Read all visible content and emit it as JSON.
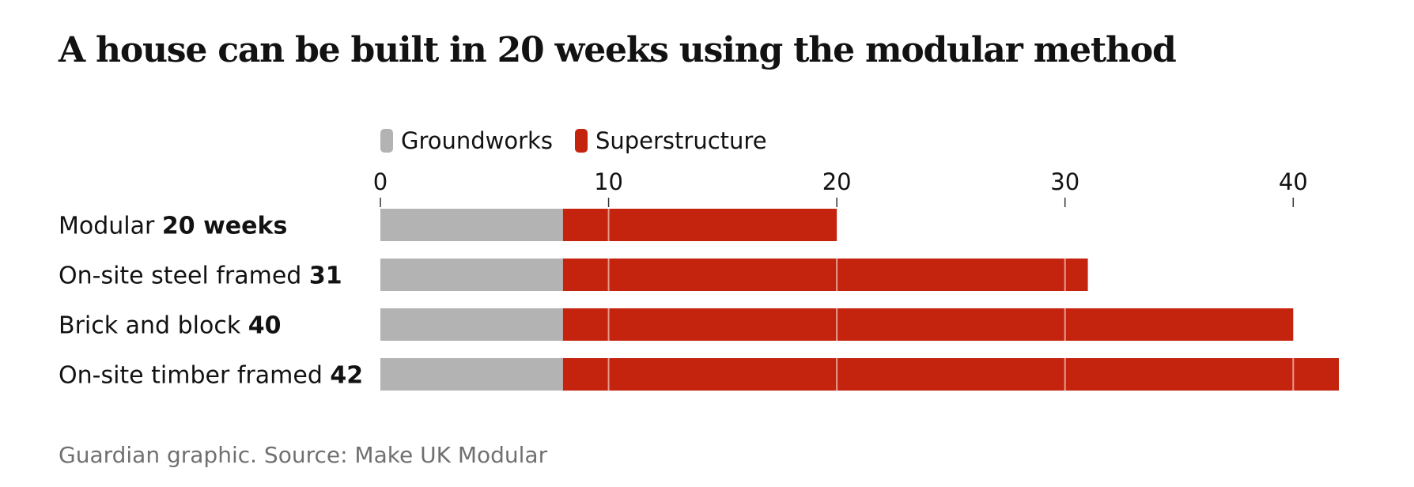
{
  "chart_data": {
    "type": "bar",
    "orientation": "horizontal",
    "stacked": true,
    "title": "A house can be built in 20 weeks using the modular method",
    "categories": [
      {
        "label": "Modular",
        "value_label": "20 weeks"
      },
      {
        "label": "On-site steel framed",
        "value_label": "31"
      },
      {
        "label": "Brick and block",
        "value_label": "40"
      },
      {
        "label": "On-site timber framed",
        "value_label": "42"
      }
    ],
    "series": [
      {
        "name": "Groundworks",
        "color": "#b3b3b3",
        "values": [
          8,
          8,
          8,
          8
        ]
      },
      {
        "name": "Superstructure",
        "color": "#c4230d",
        "values": [
          12,
          23,
          32,
          34
        ]
      }
    ],
    "xlim": [
      0,
      42
    ],
    "xticks": [
      0,
      10,
      20,
      30,
      40
    ],
    "grid": true,
    "legend_position": "top"
  },
  "source": "Guardian graphic. Source: Make UK Modular"
}
